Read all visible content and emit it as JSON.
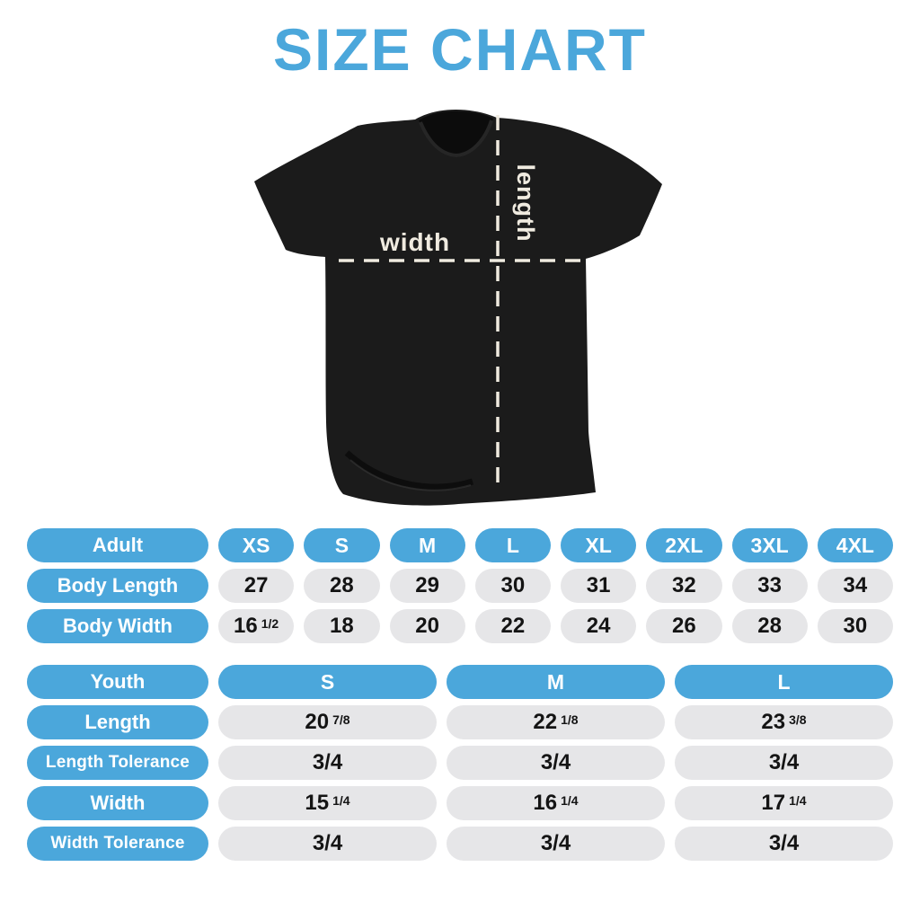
{
  "title": "SIZE CHART",
  "colors": {
    "accent_blue": "#4BA7DB",
    "pill_gray": "#E6E6E8",
    "value_text": "#141414",
    "shirt_black": "#1B1B1B",
    "measure_cream": "#F0EBE0"
  },
  "diagram": {
    "width_label": "width",
    "length_label": "length"
  },
  "adult": {
    "label": "Adult",
    "sizes": [
      "XS",
      "S",
      "M",
      "L",
      "XL",
      "2XL",
      "3XL",
      "4XL"
    ],
    "rows": [
      {
        "label": "Body Length",
        "values": [
          {
            "n": "27",
            "f": ""
          },
          {
            "n": "28",
            "f": ""
          },
          {
            "n": "29",
            "f": ""
          },
          {
            "n": "30",
            "f": ""
          },
          {
            "n": "31",
            "f": ""
          },
          {
            "n": "32",
            "f": ""
          },
          {
            "n": "33",
            "f": ""
          },
          {
            "n": "34",
            "f": ""
          }
        ]
      },
      {
        "label": "Body Width",
        "values": [
          {
            "n": "16",
            "f": "1/2"
          },
          {
            "n": "18",
            "f": ""
          },
          {
            "n": "20",
            "f": ""
          },
          {
            "n": "22",
            "f": ""
          },
          {
            "n": "24",
            "f": ""
          },
          {
            "n": "26",
            "f": ""
          },
          {
            "n": "28",
            "f": ""
          },
          {
            "n": "30",
            "f": ""
          }
        ]
      }
    ]
  },
  "youth": {
    "label": "Youth",
    "sizes": [
      "S",
      "M",
      "L"
    ],
    "rows": [
      {
        "label": "Length",
        "values": [
          {
            "n": "20",
            "f": "7/8"
          },
          {
            "n": "22",
            "f": "1/8"
          },
          {
            "n": "23",
            "f": "3/8"
          }
        ]
      },
      {
        "label": "Length Tolerance",
        "values": [
          {
            "n": "3/4",
            "f": ""
          },
          {
            "n": "3/4",
            "f": ""
          },
          {
            "n": "3/4",
            "f": ""
          }
        ]
      },
      {
        "label": "Width",
        "values": [
          {
            "n": "15",
            "f": "1/4"
          },
          {
            "n": "16",
            "f": "1/4"
          },
          {
            "n": "17",
            "f": "1/4"
          }
        ]
      },
      {
        "label": "Width Tolerance",
        "values": [
          {
            "n": "3/4",
            "f": ""
          },
          {
            "n": "3/4",
            "f": ""
          },
          {
            "n": "3/4",
            "f": ""
          }
        ]
      }
    ]
  },
  "chart_data": [
    {
      "type": "table",
      "title": "Adult (inches)",
      "columns": [
        "Adult",
        "XS",
        "S",
        "M",
        "L",
        "XL",
        "2XL",
        "3XL",
        "4XL"
      ],
      "rows": [
        [
          "Body Length",
          "27",
          "28",
          "29",
          "30",
          "31",
          "32",
          "33",
          "34"
        ],
        [
          "Body Width",
          "16 1/2",
          "18",
          "20",
          "22",
          "24",
          "26",
          "28",
          "30"
        ]
      ]
    },
    {
      "type": "table",
      "title": "Youth (inches)",
      "columns": [
        "Youth",
        "S",
        "M",
        "L"
      ],
      "rows": [
        [
          "Length",
          "20 7/8",
          "22 1/8",
          "23 3/8"
        ],
        [
          "Length Tolerance",
          "3/4",
          "3/4",
          "3/4"
        ],
        [
          "Width",
          "15 1/4",
          "16 1/4",
          "17 1/4"
        ],
        [
          "Width Tolerance",
          "3/4",
          "3/4",
          "3/4"
        ]
      ]
    }
  ]
}
